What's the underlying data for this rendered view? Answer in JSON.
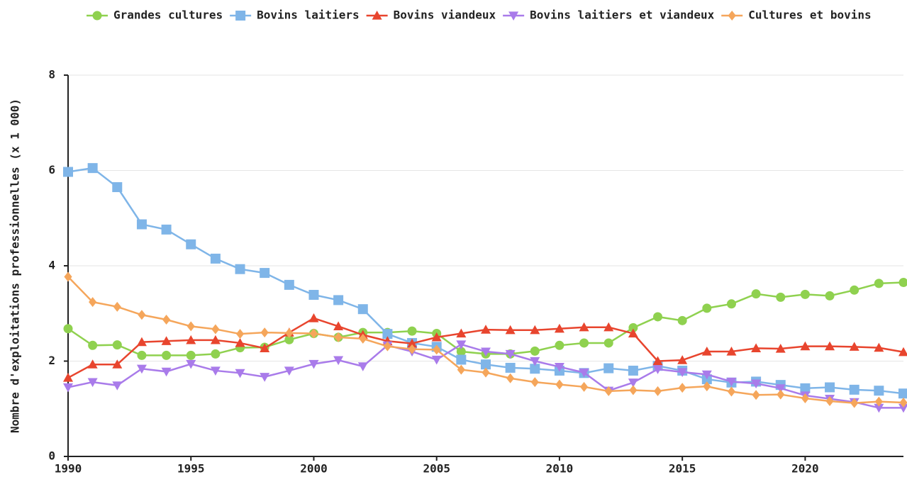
{
  "chart_data": {
    "type": "line",
    "y_label": "Nombre d'exploitations professionnelles (x 1 000)",
    "x": [
      1990,
      1991,
      1992,
      1993,
      1994,
      1995,
      1996,
      1997,
      1998,
      1999,
      2000,
      2001,
      2002,
      2003,
      2004,
      2005,
      2006,
      2007,
      2008,
      2009,
      2010,
      2011,
      2012,
      2013,
      2014,
      2015,
      2016,
      2017,
      2018,
      2019,
      2020,
      2021,
      2022,
      2023,
      2024
    ],
    "xlim": [
      1990,
      2024
    ],
    "xticks": [
      1990,
      1995,
      2000,
      2005,
      2010,
      2015,
      2020
    ],
    "ylim": [
      0,
      8
    ],
    "yticks": [
      0,
      2,
      4,
      6,
      8
    ],
    "grid": true,
    "series": [
      {
        "name": "Grandes cultures",
        "color": "#8fd14f",
        "marker": "circle",
        "values": [
          2.68,
          2.33,
          2.34,
          2.12,
          2.12,
          2.12,
          2.15,
          2.28,
          2.29,
          2.45,
          2.58,
          2.5,
          2.6,
          2.6,
          2.63,
          2.58,
          2.2,
          2.15,
          2.15,
          2.21,
          2.33,
          2.38,
          2.38,
          2.7,
          2.93,
          2.85,
          3.11,
          3.2,
          3.41,
          3.34,
          3.4,
          3.37,
          3.49,
          3.63,
          3.65
        ]
      },
      {
        "name": "Bovins laitiers",
        "color": "#7fb5e8",
        "marker": "square",
        "values": [
          5.97,
          6.05,
          5.65,
          4.87,
          4.76,
          4.45,
          4.15,
          3.93,
          3.85,
          3.6,
          3.39,
          3.28,
          3.09,
          2.57,
          2.38,
          2.3,
          2.03,
          1.93,
          1.86,
          1.84,
          1.8,
          1.75,
          1.85,
          1.8,
          1.9,
          1.8,
          1.62,
          1.55,
          1.57,
          1.5,
          1.43,
          1.45,
          1.4,
          1.38,
          1.32
        ]
      },
      {
        "name": "Bovins viandeux",
        "color": "#e8452e",
        "marker": "triangle",
        "values": [
          1.65,
          1.93,
          1.93,
          2.4,
          2.42,
          2.44,
          2.44,
          2.38,
          2.27,
          2.6,
          2.9,
          2.73,
          2.55,
          2.42,
          2.37,
          2.5,
          2.58,
          2.66,
          2.65,
          2.65,
          2.68,
          2.71,
          2.71,
          2.58,
          2.0,
          2.02,
          2.2,
          2.2,
          2.27,
          2.26,
          2.31,
          2.31,
          2.3,
          2.28,
          2.19
        ]
      },
      {
        "name": "Bovins laitiers et viandeux",
        "color": "#a97bea",
        "marker": "triangle-down",
        "values": [
          1.45,
          1.56,
          1.49,
          1.84,
          1.78,
          1.94,
          1.8,
          1.75,
          1.67,
          1.8,
          1.94,
          2.02,
          1.89,
          2.33,
          2.2,
          2.03,
          2.35,
          2.2,
          2.15,
          2.0,
          1.88,
          1.76,
          1.38,
          1.55,
          1.83,
          1.77,
          1.72,
          1.57,
          1.53,
          1.43,
          1.28,
          1.21,
          1.14,
          1.02,
          1.02
        ]
      },
      {
        "name": "Cultures et bovins",
        "color": "#f5a65b",
        "marker": "diamond",
        "values": [
          3.77,
          3.24,
          3.14,
          2.97,
          2.87,
          2.73,
          2.67,
          2.57,
          2.6,
          2.59,
          2.58,
          2.5,
          2.47,
          2.31,
          2.25,
          2.24,
          1.82,
          1.76,
          1.64,
          1.56,
          1.51,
          1.46,
          1.37,
          1.39,
          1.37,
          1.44,
          1.47,
          1.36,
          1.29,
          1.3,
          1.22,
          1.16,
          1.12,
          1.15,
          1.13
        ]
      }
    ]
  }
}
